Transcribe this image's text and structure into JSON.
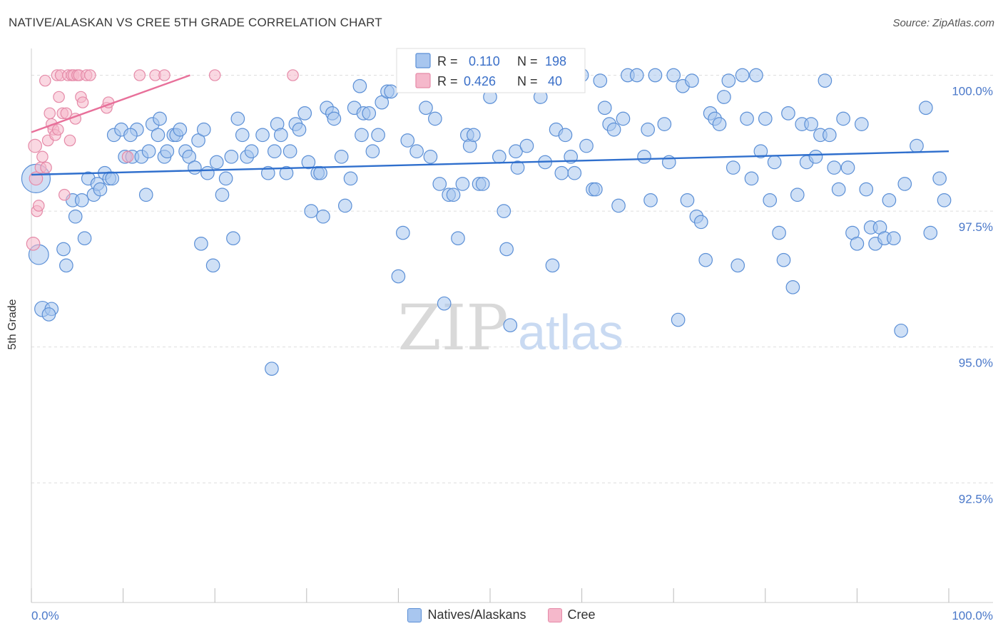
{
  "chart_data": {
    "type": "scatter",
    "title": "NATIVE/ALASKAN VS CREE 5TH GRADE CORRELATION CHART",
    "source": "Source: ZipAtlas.com",
    "ylabel": "5th Grade",
    "xlabel": "",
    "xlim": [
      0,
      100
    ],
    "ylim": [
      90.3,
      100.4
    ],
    "y_ticks": [
      {
        "value": 100.0,
        "label": "100.0%"
      },
      {
        "value": 97.5,
        "label": "97.5%"
      },
      {
        "value": 95.0,
        "label": "95.0%"
      },
      {
        "value": 92.5,
        "label": "92.5%"
      }
    ],
    "x_tick_labels": {
      "left": "0.0%",
      "right": "100.0%"
    },
    "x_minor_ticks": [
      0,
      10,
      20,
      30,
      40,
      50,
      60,
      70,
      80,
      90,
      100
    ],
    "grid": true,
    "watermark": {
      "part1": "ZIP",
      "part2": "atlas"
    },
    "colors": {
      "blue_fill": "#a8c6ef",
      "blue_stroke": "#5b8fd6",
      "blue_line": "#2f6fcd",
      "pink_fill": "#f5b8cb",
      "pink_stroke": "#e58aa8",
      "pink_line": "#e8709a",
      "axis_text": "#4a78c9"
    },
    "legend": {
      "position": "top-center",
      "rows": [
        {
          "r_label": "R =",
          "r_value": "0.110",
          "n_label": "N =",
          "n_value": "198"
        },
        {
          "r_label": "R =",
          "r_value": "0.426",
          "n_label": "N =",
          "n_value": "40"
        }
      ]
    },
    "series": [
      {
        "name": "Natives/Alaskans",
        "color": "blue",
        "trend": {
          "x": [
            0,
            100
          ],
          "y": [
            98.17,
            98.6
          ]
        },
        "points": [
          [
            0.5,
            98.1,
            26
          ],
          [
            0.8,
            96.7,
            18
          ],
          [
            1.2,
            95.7,
            14
          ],
          [
            2.2,
            95.7,
            12
          ],
          [
            1.9,
            95.6,
            12
          ],
          [
            3.5,
            96.8,
            12
          ],
          [
            3.8,
            96.5,
            12
          ],
          [
            4.5,
            97.7,
            12
          ],
          [
            4.8,
            97.4,
            12
          ],
          [
            5.5,
            97.7,
            12
          ],
          [
            5.8,
            97.0,
            12
          ],
          [
            6.2,
            98.1,
            12
          ],
          [
            6.8,
            97.8,
            12
          ],
          [
            7.2,
            98.0,
            12
          ],
          [
            7.5,
            97.9,
            12
          ],
          [
            8.0,
            98.2,
            12
          ],
          [
            8.5,
            98.1,
            12
          ],
          [
            9.0,
            98.9,
            12
          ],
          [
            9.8,
            99.0,
            12
          ],
          [
            10.2,
            98.5,
            12
          ],
          [
            11.0,
            98.5,
            12
          ],
          [
            11.5,
            99.0,
            12
          ],
          [
            12.0,
            98.5,
            12
          ],
          [
            12.5,
            97.8,
            12
          ],
          [
            12.8,
            98.6,
            12
          ],
          [
            13.2,
            99.1,
            12
          ],
          [
            13.8,
            98.9,
            12
          ],
          [
            14.5,
            98.5,
            12
          ],
          [
            14.8,
            98.6,
            12
          ],
          [
            15.5,
            98.9,
            12
          ],
          [
            15.8,
            98.9,
            12
          ],
          [
            16.2,
            99.0,
            12
          ],
          [
            16.8,
            98.6,
            12
          ],
          [
            17.2,
            98.5,
            12
          ],
          [
            17.8,
            98.3,
            12
          ],
          [
            18.2,
            98.8,
            12
          ],
          [
            18.8,
            99.0,
            12
          ],
          [
            19.2,
            98.2,
            12
          ],
          [
            19.8,
            96.5,
            12
          ],
          [
            20.2,
            98.4,
            12
          ],
          [
            20.8,
            97.8,
            12
          ],
          [
            21.2,
            98.1,
            12
          ],
          [
            21.8,
            98.5,
            12
          ],
          [
            22.5,
            99.2,
            12
          ],
          [
            23.0,
            98.9,
            12
          ],
          [
            23.5,
            98.5,
            12
          ],
          [
            24.0,
            98.6,
            12
          ],
          [
            25.2,
            98.9,
            12
          ],
          [
            25.8,
            98.2,
            12
          ],
          [
            26.2,
            94.6,
            12
          ],
          [
            26.8,
            99.1,
            12
          ],
          [
            27.2,
            98.9,
            12
          ],
          [
            27.8,
            98.2,
            12
          ],
          [
            28.2,
            98.6,
            12
          ],
          [
            28.8,
            99.1,
            12
          ],
          [
            29.2,
            99.0,
            12
          ],
          [
            29.8,
            99.3,
            12
          ],
          [
            30.2,
            98.4,
            12
          ],
          [
            30.5,
            97.5,
            12
          ],
          [
            31.2,
            98.2,
            12
          ],
          [
            31.8,
            97.4,
            12
          ],
          [
            32.2,
            99.4,
            12
          ],
          [
            32.8,
            99.3,
            12
          ],
          [
            33.0,
            99.2,
            12
          ],
          [
            33.8,
            98.5,
            12
          ],
          [
            34.2,
            97.6,
            12
          ],
          [
            34.8,
            98.1,
            12
          ],
          [
            35.2,
            99.4,
            12
          ],
          [
            35.8,
            99.8,
            12
          ],
          [
            36.2,
            99.3,
            12
          ],
          [
            36.8,
            99.3,
            12
          ],
          [
            37.2,
            98.6,
            12
          ],
          [
            37.8,
            98.9,
            12
          ],
          [
            38.2,
            99.5,
            12
          ],
          [
            38.8,
            99.7,
            12
          ],
          [
            39.2,
            99.7,
            12
          ],
          [
            40.0,
            96.3,
            12
          ],
          [
            40.5,
            97.1,
            12
          ],
          [
            41.0,
            98.8,
            12
          ],
          [
            42.0,
            98.6,
            12
          ],
          [
            43.0,
            99.4,
            12
          ],
          [
            44.0,
            99.2,
            12
          ],
          [
            44.5,
            98.0,
            12
          ],
          [
            45.0,
            95.8,
            12
          ],
          [
            45.5,
            97.8,
            12
          ],
          [
            46.0,
            97.8,
            12
          ],
          [
            46.5,
            97.0,
            12
          ],
          [
            47.0,
            98.0,
            12
          ],
          [
            47.5,
            98.9,
            12
          ],
          [
            47.8,
            98.7,
            12
          ],
          [
            48.2,
            98.9,
            12
          ],
          [
            48.8,
            98.0,
            12
          ],
          [
            49.2,
            98.0,
            12
          ],
          [
            50.0,
            99.6,
            12
          ],
          [
            51.0,
            98.5,
            12
          ],
          [
            51.5,
            97.5,
            12
          ],
          [
            51.8,
            96.8,
            12
          ],
          [
            52.2,
            95.4,
            12
          ],
          [
            52.8,
            98.6,
            12
          ],
          [
            53.0,
            98.3,
            12
          ],
          [
            54.0,
            98.7,
            12
          ],
          [
            55.0,
            99.8,
            12
          ],
          [
            55.5,
            99.6,
            12
          ],
          [
            56.0,
            98.4,
            12
          ],
          [
            56.8,
            96.5,
            12
          ],
          [
            57.2,
            99.0,
            12
          ],
          [
            57.8,
            98.2,
            12
          ],
          [
            58.2,
            98.9,
            12
          ],
          [
            58.8,
            98.5,
            12
          ],
          [
            59.2,
            98.2,
            12
          ],
          [
            60.0,
            100.0,
            12
          ],
          [
            60.5,
            98.7,
            12
          ],
          [
            61.2,
            97.9,
            12
          ],
          [
            61.5,
            97.9,
            12
          ],
          [
            62.0,
            99.9,
            12
          ],
          [
            62.5,
            99.4,
            12
          ],
          [
            63.0,
            99.1,
            12
          ],
          [
            63.5,
            99.0,
            12
          ],
          [
            64.0,
            97.6,
            12
          ],
          [
            64.5,
            99.2,
            12
          ],
          [
            65.0,
            100.0,
            12
          ],
          [
            66.0,
            100.0,
            12
          ],
          [
            66.8,
            98.5,
            12
          ],
          [
            67.2,
            99.0,
            12
          ],
          [
            67.5,
            97.7,
            12
          ],
          [
            68.0,
            100.0,
            12
          ],
          [
            69.0,
            99.1,
            12
          ],
          [
            69.5,
            98.4,
            12
          ],
          [
            70.0,
            100.0,
            12
          ],
          [
            70.5,
            95.5,
            12
          ],
          [
            71.0,
            99.8,
            12
          ],
          [
            71.5,
            97.7,
            12
          ],
          [
            72.0,
            99.9,
            12
          ],
          [
            72.5,
            97.4,
            12
          ],
          [
            73.0,
            97.3,
            12
          ],
          [
            73.5,
            96.6,
            12
          ],
          [
            74.0,
            99.3,
            12
          ],
          [
            74.5,
            99.2,
            12
          ],
          [
            75.0,
            99.1,
            12
          ],
          [
            75.5,
            99.6,
            12
          ],
          [
            76.0,
            99.9,
            12
          ],
          [
            76.5,
            98.3,
            12
          ],
          [
            77.0,
            96.5,
            12
          ],
          [
            77.5,
            100.0,
            12
          ],
          [
            78.0,
            99.2,
            12
          ],
          [
            78.5,
            98.1,
            12
          ],
          [
            79.0,
            100.0,
            12
          ],
          [
            79.5,
            98.6,
            12
          ],
          [
            80.0,
            99.2,
            12
          ],
          [
            80.5,
            97.7,
            12
          ],
          [
            81.0,
            98.4,
            12
          ],
          [
            81.5,
            97.1,
            12
          ],
          [
            82.0,
            96.6,
            12
          ],
          [
            82.5,
            99.3,
            12
          ],
          [
            83.0,
            96.1,
            12
          ],
          [
            83.5,
            97.8,
            12
          ],
          [
            84.0,
            99.1,
            12
          ],
          [
            84.5,
            98.4,
            12
          ],
          [
            85.0,
            99.1,
            12
          ],
          [
            85.5,
            98.5,
            12
          ],
          [
            86.0,
            98.9,
            12
          ],
          [
            86.5,
            99.9,
            12
          ],
          [
            87.0,
            98.9,
            12
          ],
          [
            87.5,
            98.3,
            12
          ],
          [
            88.0,
            97.9,
            12
          ],
          [
            88.5,
            99.2,
            12
          ],
          [
            89.0,
            98.3,
            12
          ],
          [
            89.5,
            97.1,
            12
          ],
          [
            90.0,
            96.9,
            12
          ],
          [
            90.5,
            99.1,
            12
          ],
          [
            91.0,
            97.9,
            12
          ],
          [
            91.5,
            97.2,
            12
          ],
          [
            92.0,
            96.9,
            12
          ],
          [
            92.5,
            97.2,
            12
          ],
          [
            93.0,
            97.0,
            12
          ],
          [
            93.5,
            97.7,
            12
          ],
          [
            94.0,
            97.0,
            12
          ],
          [
            94.8,
            95.3,
            12
          ],
          [
            95.2,
            98.0,
            12
          ],
          [
            96.5,
            98.7,
            12
          ],
          [
            97.5,
            99.4,
            12
          ],
          [
            98.0,
            97.1,
            12
          ],
          [
            99.0,
            98.1,
            12
          ],
          [
            99.5,
            97.7,
            12
          ],
          [
            36.0,
            98.9,
            12
          ],
          [
            31.5,
            98.2,
            12
          ],
          [
            22.0,
            97.0,
            12
          ],
          [
            18.5,
            96.9,
            12
          ],
          [
            14.0,
            99.2,
            12
          ],
          [
            10.8,
            98.9,
            12
          ],
          [
            8.8,
            98.1,
            12
          ],
          [
            26.5,
            98.6,
            12
          ],
          [
            43.5,
            98.5,
            12
          ]
        ]
      },
      {
        "name": "Cree",
        "color": "pink",
        "trend": {
          "x": [
            0,
            17.3
          ],
          "y": [
            98.95,
            100.0
          ]
        },
        "points": [
          [
            0.2,
            96.9,
            12
          ],
          [
            0.5,
            98.1,
            12
          ],
          [
            0.4,
            98.7,
            12
          ],
          [
            0.6,
            97.5,
            10
          ],
          [
            0.8,
            97.6,
            10
          ],
          [
            1.0,
            98.3,
            10
          ],
          [
            1.2,
            98.5,
            10
          ],
          [
            1.5,
            99.9,
            10
          ],
          [
            1.8,
            98.8,
            10
          ],
          [
            2.0,
            99.3,
            10
          ],
          [
            2.2,
            99.1,
            10
          ],
          [
            2.4,
            99.0,
            10
          ],
          [
            2.6,
            98.9,
            10
          ],
          [
            2.8,
            100.0,
            10
          ],
          [
            3.0,
            99.6,
            10
          ],
          [
            3.2,
            100.0,
            10
          ],
          [
            3.4,
            99.3,
            10
          ],
          [
            3.6,
            97.8,
            10
          ],
          [
            3.8,
            99.3,
            10
          ],
          [
            4.0,
            100.0,
            10
          ],
          [
            4.2,
            98.8,
            10
          ],
          [
            4.4,
            100.0,
            10
          ],
          [
            4.6,
            100.0,
            10
          ],
          [
            4.8,
            99.2,
            10
          ],
          [
            5.0,
            100.0,
            10
          ],
          [
            5.2,
            100.0,
            10
          ],
          [
            5.4,
            99.6,
            10
          ],
          [
            5.6,
            99.5,
            10
          ],
          [
            6.0,
            100.0,
            10
          ],
          [
            6.4,
            100.0,
            10
          ],
          [
            8.2,
            99.4,
            10
          ],
          [
            8.4,
            99.5,
            10
          ],
          [
            10.5,
            98.5,
            10
          ],
          [
            11.8,
            100.0,
            10
          ],
          [
            13.5,
            100.0,
            10
          ],
          [
            14.5,
            100.0,
            10
          ],
          [
            20.0,
            100.0,
            10
          ],
          [
            28.5,
            100.0,
            10
          ],
          [
            2.9,
            99.0,
            10
          ],
          [
            1.6,
            98.3,
            10
          ]
        ]
      }
    ]
  }
}
